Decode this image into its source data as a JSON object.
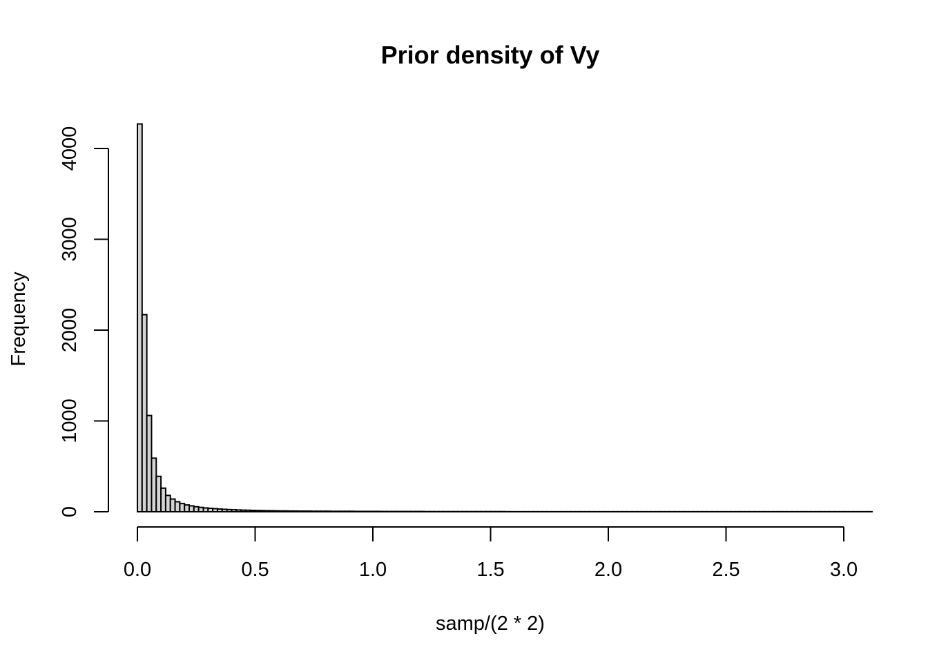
{
  "chart_data": {
    "type": "bar",
    "title": "Prior density of Vy",
    "xlabel": "samp/(2 * 2)",
    "ylabel": "Frequency",
    "bin_width": 0.02,
    "bin_start": 0.0,
    "xlim": [
      0.0,
      3.12
    ],
    "ylim": [
      0,
      4270
    ],
    "x_ticks": [
      "0.0",
      "0.5",
      "1.0",
      "1.5",
      "2.0",
      "2.5",
      "3.0"
    ],
    "x_tick_values": [
      0.0,
      0.5,
      1.0,
      1.5,
      2.0,
      2.5,
      3.0
    ],
    "y_ticks": [
      "0",
      "1000",
      "2000",
      "3000",
      "4000"
    ],
    "y_tick_values": [
      0,
      1000,
      2000,
      3000,
      4000
    ],
    "grid": false,
    "values": [
      4270,
      2170,
      1060,
      590,
      390,
      260,
      180,
      140,
      110,
      90,
      75,
      65,
      55,
      48,
      42,
      38,
      34,
      30,
      27,
      24,
      22,
      20,
      18,
      17,
      15,
      14,
      13,
      12,
      11,
      10,
      9,
      9,
      8,
      8,
      7,
      7,
      7,
      6,
      6,
      6,
      6,
      5,
      5,
      5,
      5,
      5,
      4,
      4,
      4,
      4,
      4,
      4,
      3,
      3,
      3,
      3,
      3,
      3,
      3,
      3,
      3,
      2,
      2,
      2,
      2,
      2,
      2,
      2,
      2,
      2,
      2,
      2,
      2,
      2,
      2,
      2,
      2,
      2,
      1,
      1,
      1,
      1,
      1,
      1,
      1,
      1,
      1,
      1,
      1,
      1,
      1,
      1,
      1,
      1,
      1,
      1,
      1,
      1,
      1,
      1,
      1,
      1,
      1,
      1,
      1,
      1,
      1,
      1,
      1,
      1,
      1,
      1,
      1,
      1,
      1,
      1,
      1,
      1,
      1,
      1,
      1,
      1,
      1,
      1,
      1,
      1,
      1,
      1,
      1,
      1,
      1,
      1,
      1,
      1,
      1,
      1,
      1,
      1,
      1,
      1,
      1,
      1,
      1,
      1,
      1,
      1,
      1,
      1,
      1,
      1,
      1,
      1,
      1,
      1,
      1,
      1
    ]
  }
}
